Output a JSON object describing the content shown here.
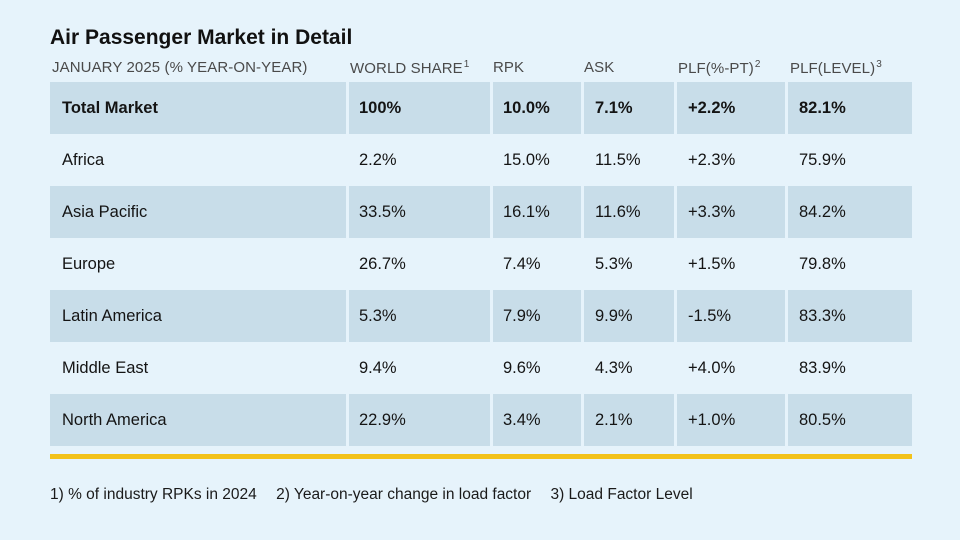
{
  "title": "Air Passenger Market in Detail",
  "headers": {
    "market": "JANUARY 2025 (% YEAR-ON-YEAR)",
    "world_share": "WORLD SHARE",
    "world_share_note": "1",
    "rpk": "RPK",
    "ask": "ASK",
    "plf_pt": "PLF(%-PT)",
    "plf_pt_note": "2",
    "plf_level": "PLF(LEVEL)",
    "plf_level_note": "3"
  },
  "rows": [
    {
      "market": "Total Market",
      "world_share": "100%",
      "rpk": "10.0%",
      "ask": "7.1%",
      "plf_pt": "+2.2%",
      "plf_level": "82.1%"
    },
    {
      "market": "Africa",
      "world_share": "2.2%",
      "rpk": "15.0%",
      "ask": "11.5%",
      "plf_pt": "+2.3%",
      "plf_level": "75.9%"
    },
    {
      "market": "Asia Pacific",
      "world_share": "33.5%",
      "rpk": "16.1%",
      "ask": "11.6%",
      "plf_pt": "+3.3%",
      "plf_level": "84.2%"
    },
    {
      "market": "Europe",
      "world_share": "26.7%",
      "rpk": "7.4%",
      "ask": "5.3%",
      "plf_pt": "+1.5%",
      "plf_level": "79.8%"
    },
    {
      "market": "Latin America",
      "world_share": "5.3%",
      "rpk": "7.9%",
      "ask": "9.9%",
      "plf_pt": "-1.5%",
      "plf_level": "83.3%"
    },
    {
      "market": "Middle East",
      "world_share": "9.4%",
      "rpk": "9.6%",
      "ask": "4.3%",
      "plf_pt": "+4.0%",
      "plf_level": "83.9%"
    },
    {
      "market": "North America",
      "world_share": "22.9%",
      "rpk": "3.4%",
      "ask": "2.1%",
      "plf_pt": "+1.0%",
      "plf_level": "80.5%"
    }
  ],
  "footnotes": [
    "1) % of industry RPKs in 2024",
    "2) Year-on-year change in load factor",
    "3) Load Factor Level"
  ],
  "colors": {
    "background": "#e6f3fb",
    "row_shade": "#c8dde9",
    "accent_bar": "#f2c21b"
  }
}
